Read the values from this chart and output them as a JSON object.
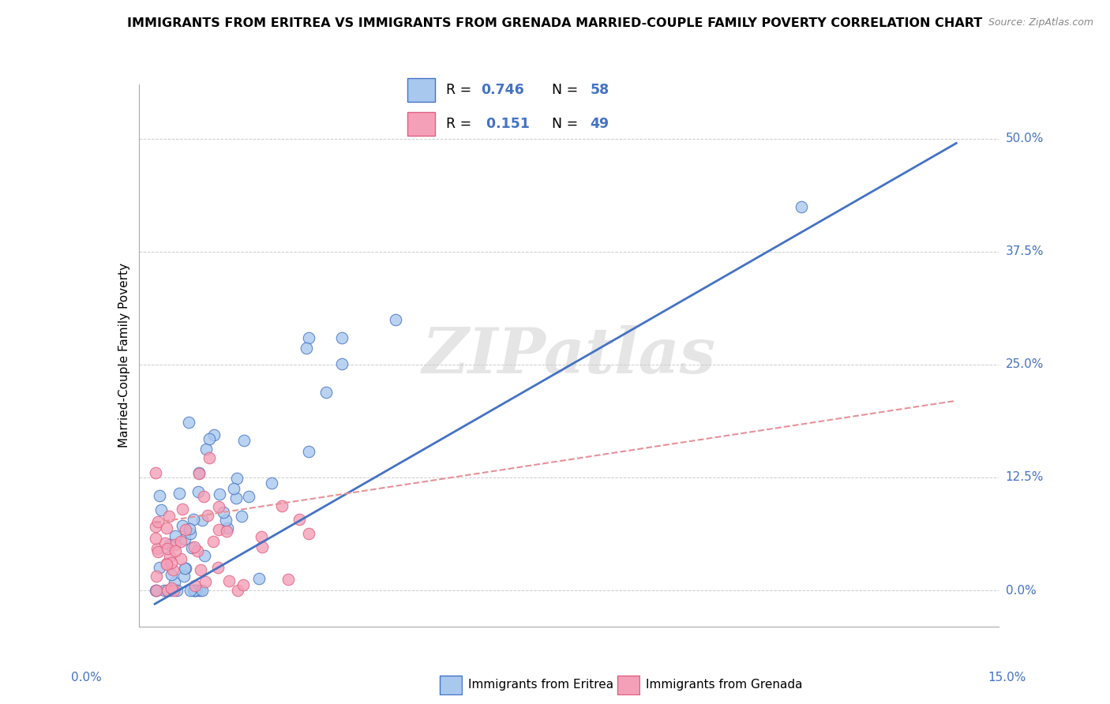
{
  "title": "IMMIGRANTS FROM ERITREA VS IMMIGRANTS FROM GRENADA MARRIED-COUPLE FAMILY POVERTY CORRELATION CHART",
  "source": "Source: ZipAtlas.com",
  "ylabel": "Married-Couple Family Poverty",
  "ytick_values": [
    0.0,
    12.5,
    25.0,
    37.5,
    50.0
  ],
  "ytick_labels": [
    "0.0%",
    "12.5%",
    "25.0%",
    "37.5%",
    "50.0%"
  ],
  "R_eritrea": 0.746,
  "N_eritrea": 58,
  "R_grenada": 0.151,
  "N_grenada": 49,
  "color_eritrea_fill": "#A8C8EE",
  "color_eritrea_edge": "#4472C4",
  "color_grenada_fill": "#F4A0B8",
  "color_grenada_edge": "#E06080",
  "color_line_eritrea": "#4472C4",
  "color_line_grenada": "#E8909A",
  "watermark": "ZIPatlas",
  "slope_eritrea": 3.4,
  "intercept_eritrea": -1.5,
  "slope_grenada": 0.9,
  "intercept_grenada": 7.5
}
